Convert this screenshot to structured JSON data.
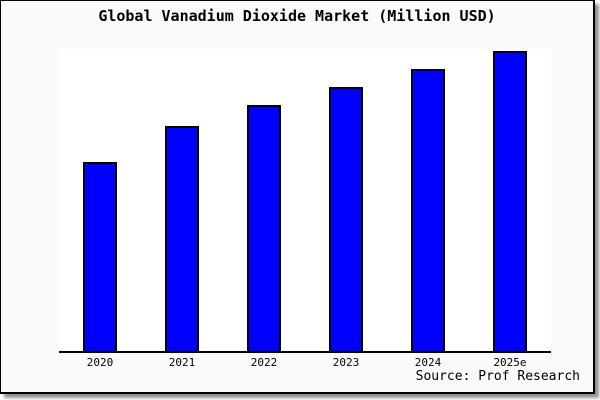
{
  "title": "Global Vanadium Dioxide Market (Million USD)",
  "source_note": "Source: Prof Research",
  "colors": {
    "bar_fill": "#0000ff",
    "bar_border": "#000000",
    "plot_background": "#ffffff",
    "panel_background": "#fafafa",
    "panel_border": "#000000",
    "axis_line": "#000000",
    "shadow": "#6e6e6e"
  },
  "chart_data": {
    "type": "bar",
    "title": "Global Vanadium Dioxide Market (Million USD)",
    "categories": [
      "2020",
      "2021",
      "2022",
      "2023",
      "2024",
      "2025e"
    ],
    "values": [
      63,
      75,
      82,
      88,
      94,
      100
    ],
    "values_unit": "relative height, % of tallest bar (no y-axis values shown in chart)",
    "series_color": "#0000ff",
    "xlabel": "",
    "ylabel": "",
    "value_axis_visible": false,
    "gridlines": false,
    "legend": false,
    "annotations": [
      "Source: Prof Research"
    ]
  }
}
